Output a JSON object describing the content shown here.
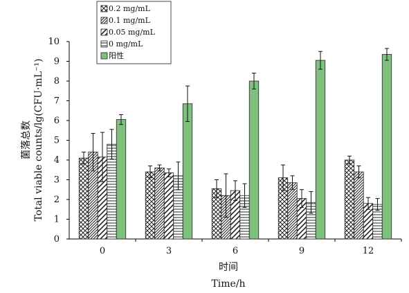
{
  "chart_data": {
    "type": "bar",
    "xlabel_cn": "时间",
    "xlabel_en": "Time/h",
    "ylabel_cn": "菌落总数",
    "ylabel_en": "Total viable counts/lg(CFU·mL⁻¹)",
    "categories": [
      "0",
      "3",
      "6",
      "9",
      "12"
    ],
    "ylim": [
      0,
      10
    ],
    "yticks": [
      "0",
      "1",
      "2",
      "3",
      "4",
      "5",
      "6",
      "7",
      "8",
      "9",
      "10"
    ],
    "grid": false,
    "legend_position": "top-left",
    "series": [
      {
        "name": "0.2 mg/mL",
        "pattern": "crosshatch",
        "color": "#ffffff",
        "values": [
          4.1,
          3.4,
          2.55,
          3.1,
          4.0
        ],
        "errors": [
          0.3,
          0.3,
          0.45,
          0.65,
          0.2
        ]
      },
      {
        "name": "0.1 mg/mL",
        "pattern": "dense-diagonal",
        "color": "#ffffff",
        "values": [
          4.4,
          3.6,
          2.2,
          2.85,
          3.4
        ],
        "errors": [
          0.95,
          0.15,
          1.1,
          0.35,
          0.3
        ]
      },
      {
        "name": "0.05 mg/mL",
        "pattern": "wide-diagonal",
        "color": "#ffffff",
        "values": [
          4.15,
          3.35,
          2.45,
          2.05,
          1.8
        ],
        "errors": [
          1.25,
          0.2,
          0.5,
          0.45,
          0.3
        ]
      },
      {
        "name": "0 mg/mL",
        "pattern": "horizontal",
        "color": "#ffffff",
        "values": [
          4.8,
          3.2,
          2.2,
          1.85,
          1.75
        ],
        "errors": [
          0.75,
          0.7,
          0.6,
          0.55,
          0.3
        ]
      },
      {
        "name": "阳性",
        "pattern": "solid",
        "color": "#7fc07f",
        "values": [
          6.05,
          6.85,
          8.0,
          9.05,
          9.35
        ],
        "errors": [
          0.25,
          0.9,
          0.4,
          0.45,
          0.3
        ]
      }
    ]
  }
}
